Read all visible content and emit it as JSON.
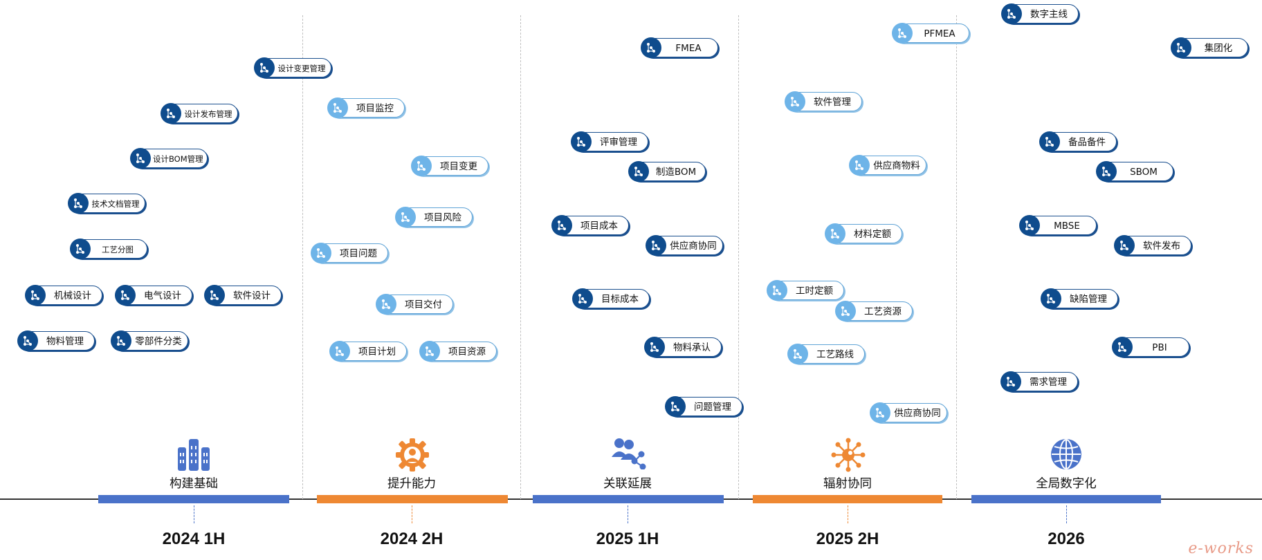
{
  "timeline": [
    {
      "year": "2024 1H",
      "stage": "构建基础",
      "color": "#4a72c9",
      "icon": "building-icon"
    },
    {
      "year": "2024 2H",
      "stage": "提升能力",
      "color": "#ee8833",
      "icon": "gear-person-icon"
    },
    {
      "year": "2025 1H",
      "stage": "关联延展",
      "color": "#4a72c9",
      "icon": "people-share-icon"
    },
    {
      "year": "2025 2H",
      "stage": "辐射协同",
      "color": "#ee8833",
      "icon": "radiate-icon"
    },
    {
      "year": "2026",
      "stage": "全局数字化",
      "color": "#4a72c9",
      "icon": "globe-icon"
    }
  ],
  "modules": [
    {
      "label": "设计变更管理",
      "tone": "dark"
    },
    {
      "label": "设计发布管理",
      "tone": "dark"
    },
    {
      "label": "设计BOM管理",
      "tone": "dark"
    },
    {
      "label": "技术文档管理",
      "tone": "dark"
    },
    {
      "label": "工艺分图",
      "tone": "dark"
    },
    {
      "label": "机械设计",
      "tone": "dark"
    },
    {
      "label": "电气设计",
      "tone": "dark"
    },
    {
      "label": "软件设计",
      "tone": "dark"
    },
    {
      "label": "物料管理",
      "tone": "dark"
    },
    {
      "label": "零部件分类",
      "tone": "dark"
    },
    {
      "label": "项目监控",
      "tone": "light"
    },
    {
      "label": "项目变更",
      "tone": "light"
    },
    {
      "label": "项目风险",
      "tone": "light"
    },
    {
      "label": "项目问题",
      "tone": "light"
    },
    {
      "label": "项目交付",
      "tone": "light"
    },
    {
      "label": "项目计划",
      "tone": "light"
    },
    {
      "label": "项目资源",
      "tone": "light"
    },
    {
      "label": "FMEA",
      "tone": "dark"
    },
    {
      "label": "评审管理",
      "tone": "dark"
    },
    {
      "label": "制造BOM",
      "tone": "dark"
    },
    {
      "label": "项目成本",
      "tone": "dark"
    },
    {
      "label": "供应商协同",
      "tone": "dark"
    },
    {
      "label": "目标成本",
      "tone": "dark"
    },
    {
      "label": "物料承认",
      "tone": "dark"
    },
    {
      "label": "问题管理",
      "tone": "dark"
    },
    {
      "label": "PFMEA",
      "tone": "light"
    },
    {
      "label": "软件管理",
      "tone": "light"
    },
    {
      "label": "供应商物料",
      "tone": "light"
    },
    {
      "label": "材料定额",
      "tone": "light"
    },
    {
      "label": "工时定额",
      "tone": "light"
    },
    {
      "label": "工艺资源",
      "tone": "light"
    },
    {
      "label": "工艺路线",
      "tone": "light"
    },
    {
      "label": "供应商协同",
      "tone": "light"
    },
    {
      "label": "数字主线",
      "tone": "dark"
    },
    {
      "label": "集团化",
      "tone": "dark"
    },
    {
      "label": "备品备件",
      "tone": "dark"
    },
    {
      "label": "SBOM",
      "tone": "dark"
    },
    {
      "label": "MBSE",
      "tone": "dark"
    },
    {
      "label": "软件发布",
      "tone": "dark"
    },
    {
      "label": "缺陷管理",
      "tone": "dark"
    },
    {
      "label": "PBI",
      "tone": "dark"
    },
    {
      "label": "需求管理",
      "tone": "dark"
    }
  ],
  "watermark": "e-works"
}
